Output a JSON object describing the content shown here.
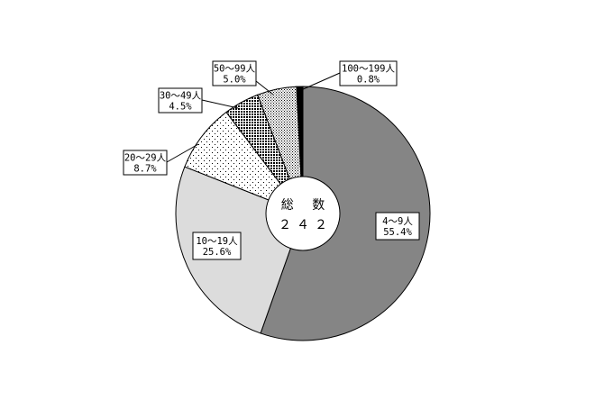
{
  "chart_data": {
    "type": "pie",
    "style": "donut",
    "title": "",
    "center_label": "総 数",
    "center_value": "２４２",
    "slices": [
      {
        "category": "4～9人",
        "percent_label": "55.4%",
        "value": 55.4,
        "fill": "solid-gray-dark"
      },
      {
        "category": "10～19人",
        "percent_label": "25.6%",
        "value": 25.6,
        "fill": "solid-gray-light"
      },
      {
        "category": "20～29人",
        "percent_label": "8.7%",
        "value": 8.7,
        "fill": "dots-sparse"
      },
      {
        "category": "30～49人",
        "percent_label": "4.5%",
        "value": 4.5,
        "fill": "checker-dense"
      },
      {
        "category": "50～99人",
        "percent_label": "5.0%",
        "value": 5.0,
        "fill": "dots-dense"
      },
      {
        "category": "100～199人",
        "percent_label": "0.8%",
        "value": 0.8,
        "fill": "solid-black"
      }
    ],
    "colors": {
      "solid-gray-dark": "#858585",
      "solid-gray-light": "#dcdcdc",
      "outline": "#000000"
    },
    "start_angle": "12 o'clock",
    "direction": "clockwise"
  }
}
